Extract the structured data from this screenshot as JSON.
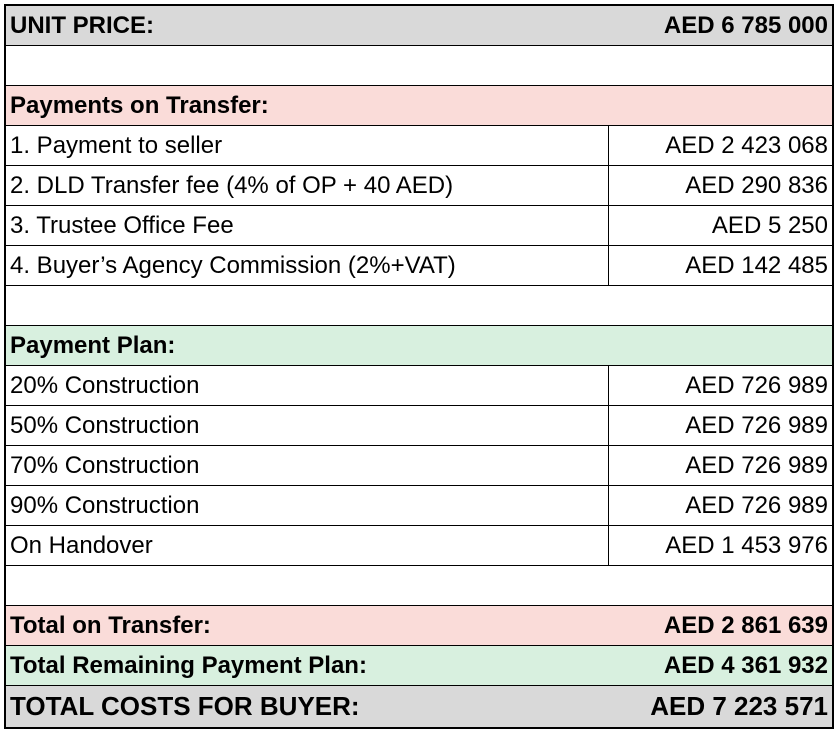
{
  "unit_price": {
    "label": "UNIT PRICE:",
    "value": "AED 6 785 000"
  },
  "payments_on_transfer": {
    "title": "Payments on Transfer:",
    "rows": [
      [
        "1. Payment to seller",
        "AED 2 423 068"
      ],
      [
        "2. DLD Transfer fee (4% of OP + 40 AED)",
        "AED 290 836"
      ],
      [
        "3. Trustee Office Fee",
        "AED 5 250"
      ],
      [
        "4. Buyer’s Agency Commission (2%+VAT)",
        "AED 142 485"
      ]
    ]
  },
  "payment_plan": {
    "title": "Payment Plan:",
    "rows": [
      [
        "20% Construction",
        "AED 726 989"
      ],
      [
        "50% Construction",
        "AED 726 989"
      ],
      [
        "70% Construction",
        "AED 726 989"
      ],
      [
        "90% Construction",
        "AED 726 989"
      ],
      [
        "On Handover",
        "AED 1 453 976"
      ]
    ]
  },
  "totals": [
    {
      "label": "Total on Transfer:",
      "value": "AED 2 861 639"
    },
    {
      "label": "Total Remaining Payment Plan:",
      "value": "AED 4 361 932"
    },
    {
      "label": "TOTAL COSTS FOR BUYER:",
      "value": "AED 7 223 571"
    }
  ]
}
